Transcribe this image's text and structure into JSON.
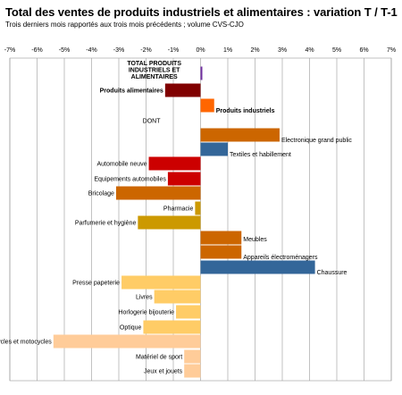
{
  "chart_data": {
    "type": "bar",
    "orientation": "horizontal",
    "title": "Total des ventes de produits industriels et alimentaires : variation T / T-1",
    "subtitle": "Trois derniers mois rapportés aux trois mois précédents ; volume CVS-CJO",
    "xlim": [
      -7,
      7
    ],
    "x_ticks": [
      "-7%",
      "-6%",
      "-5%",
      "-4%",
      "-3%",
      "-2%",
      "-1%",
      "0%",
      "1%",
      "2%",
      "3%",
      "4%",
      "5%",
      "6%",
      "7%"
    ],
    "grid": true,
    "bars": [
      {
        "label": "TOTAL PRODUITS INDUSTRIELS ET ALIMENTAIRES",
        "label_lines": [
          "TOTAL PRODUITS",
          "INDUSTRIELS ET",
          "ALIMENTAIRES"
        ],
        "value": 0.05,
        "color": "#7030a0",
        "bold": true
      },
      {
        "label": "Produits alimentaires",
        "value": -1.3,
        "color": "#800000",
        "bold": true
      },
      {
        "label": "Produits industriels",
        "value": 0.5,
        "color": "#ff6600",
        "bold": true
      },
      {
        "label": "DONT",
        "value": null,
        "color": null
      },
      {
        "label": "Electronique grand public",
        "value": 2.9,
        "color": "#cc6600"
      },
      {
        "label": "Textiles et habillement",
        "value": 1.0,
        "color": "#336699"
      },
      {
        "label": "Automobile neuve",
        "value": -1.9,
        "color": "#cc0000"
      },
      {
        "label": "Equipements automobiles",
        "value": -1.2,
        "color": "#cc0000"
      },
      {
        "label": "Bricolage",
        "value": -3.1,
        "color": "#cc6600"
      },
      {
        "label": "Pharmacie",
        "value": -0.2,
        "color": "#cc9900"
      },
      {
        "label": "Parfumerie et hygiène",
        "value": -2.3,
        "color": "#cc9900"
      },
      {
        "label": "Meubles",
        "value": 1.5,
        "color": "#cc6600"
      },
      {
        "label": "Appareils électroménagers",
        "value": 1.5,
        "color": "#cc6600"
      },
      {
        "label": "Chaussure",
        "value": 4.2,
        "color": "#336699"
      },
      {
        "label": "Presse papeterie",
        "value": -2.9,
        "color": "#ffcc66"
      },
      {
        "label": "Livres",
        "value": -1.7,
        "color": "#ffcc66"
      },
      {
        "label": "Horlogerie bijouterie",
        "value": -0.9,
        "color": "#ffcc66"
      },
      {
        "label": "Optique",
        "value": -2.1,
        "color": "#ffcc66"
      },
      {
        "label": "Cycles et motocycles",
        "value": -5.4,
        "color": "#ffcc99"
      },
      {
        "label": "Matériel de sport",
        "value": -0.6,
        "color": "#ffcc99"
      },
      {
        "label": "Jeux et jouets",
        "value": -0.6,
        "color": "#ffcc99"
      }
    ]
  }
}
